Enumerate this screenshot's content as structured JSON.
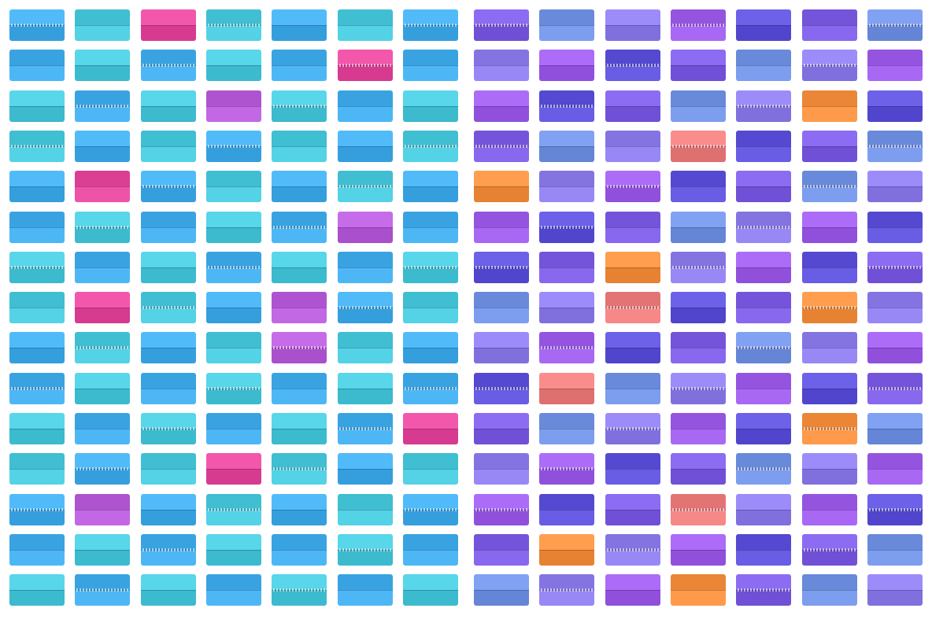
{
  "scene": {
    "subject": "",
    "left_panel": {
      "columns": 7,
      "rows": 15,
      "palette": [
        "#3fa9e8",
        "#5ad6b4",
        "#46c4d8",
        "#4db8e0"
      ],
      "accent_colors": [
        "#e0459a",
        "#b45ad6"
      ],
      "accents": [
        [
          0,
          2,
          0
        ],
        [
          1,
          5,
          0
        ],
        [
          2,
          3,
          1
        ],
        [
          4,
          1,
          0
        ],
        [
          5,
          5,
          1
        ],
        [
          7,
          1,
          0
        ],
        [
          7,
          4,
          1
        ],
        [
          8,
          4,
          1
        ],
        [
          10,
          6,
          0
        ],
        [
          11,
          3,
          0
        ],
        [
          12,
          1,
          1
        ]
      ]
    },
    "right_panel": {
      "columns": 7,
      "rows": 15,
      "palette": [
        "#7a5ae0",
        "#9a5ae6",
        "#6f8fe0",
        "#5a4fd6",
        "#8a7ae8"
      ],
      "accent_colors": [
        "#f08c3c",
        "#e87a7a"
      ],
      "accents": [
        [
          2,
          5,
          0
        ],
        [
          3,
          3,
          1
        ],
        [
          4,
          0,
          0
        ],
        [
          6,
          2,
          0
        ],
        [
          7,
          2,
          1
        ],
        [
          7,
          5,
          0
        ],
        [
          9,
          1,
          1
        ],
        [
          10,
          5,
          0
        ],
        [
          12,
          3,
          1
        ],
        [
          13,
          1,
          0
        ],
        [
          14,
          3,
          0
        ]
      ]
    },
    "background": "#ffffff"
  }
}
